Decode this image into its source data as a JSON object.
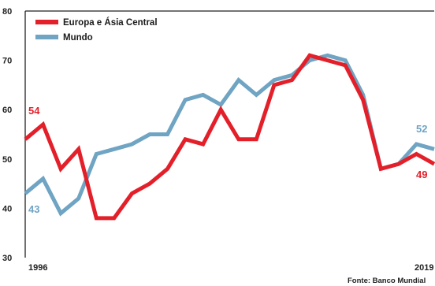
{
  "chart_data": {
    "type": "line",
    "x_start_label": "1996",
    "x_end_label": "2019",
    "x": [
      1996,
      1997,
      1998,
      1999,
      2000,
      2001,
      2002,
      2003,
      2004,
      2005,
      2006,
      2007,
      2008,
      2009,
      2010,
      2011,
      2012,
      2013,
      2014,
      2015,
      2016,
      2017,
      2018,
      2019
    ],
    "ylim": [
      30,
      80
    ],
    "yticks": [
      30,
      40,
      50,
      60,
      70,
      80
    ],
    "grid": false,
    "legend_placement": "top-left",
    "series": [
      {
        "name": "Europa e Ásia Central",
        "color": "#e3202a",
        "values": [
          54,
          57,
          48,
          52,
          38,
          38,
          43,
          45,
          48,
          54,
          53,
          60,
          54,
          54,
          65,
          66,
          71,
          70,
          69,
          62,
          48,
          49,
          51,
          49
        ],
        "start_label": "54",
        "end_label": "49"
      },
      {
        "name": "Mundo",
        "color": "#6fa4c3",
        "values": [
          43,
          46,
          39,
          42,
          51,
          52,
          53,
          55,
          55,
          62,
          63,
          61,
          66,
          63,
          66,
          67,
          70,
          71,
          70,
          63,
          48,
          49,
          53,
          52
        ],
        "start_label": "43",
        "end_label": "52"
      }
    ],
    "source": "Fonte: Banco Mundial"
  }
}
